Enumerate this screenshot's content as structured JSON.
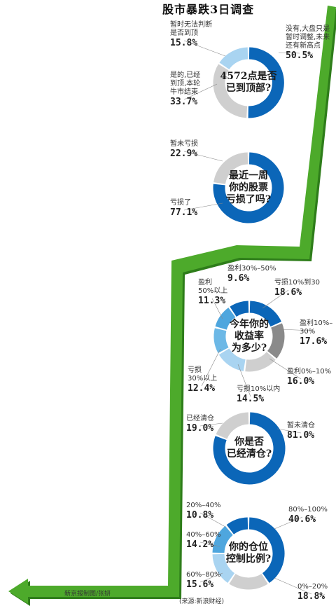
{
  "header": {
    "title": "股市暴跌3日调查"
  },
  "colors": {
    "blue": "#0b66b8",
    "light_blue": "#a9d4f1",
    "sky": "#4ea6de",
    "mid_blue": "#6cb8e6",
    "gray": "#cfcfcf",
    "dark_gray": "#8a8a8a",
    "arrow_green": "#4daa2b",
    "arrow_dark": "#2e7d1a"
  },
  "chart_data": [
    {
      "type": "pie",
      "title": "4572点是否已到顶部?",
      "title_lines": [
        "4572点是否",
        "已到顶部?"
      ],
      "slices": [
        {
          "label": "没有,大盘只是暂时调整,未来还有新高点",
          "label_lines": [
            "没有,大盘只是",
            "暂时调整,未来",
            "还有新高点"
          ],
          "value": 50.5,
          "value_text": "50.5%",
          "color": "#0b66b8"
        },
        {
          "label": "是的,已经到顶,本轮牛市结束",
          "label_lines": [
            "是的,已经",
            "到顶,本轮",
            "牛市结束"
          ],
          "value": 33.7,
          "value_text": "33.7%",
          "color": "#cfcfcf"
        },
        {
          "label": "暂时无法判断是否到顶",
          "label_lines": [
            "暂时无法判断",
            "是否到顶"
          ],
          "value": 15.8,
          "value_text": "15.8%",
          "color": "#a9d4f1"
        }
      ]
    },
    {
      "type": "pie",
      "title": "最近一周你的股票亏损了吗?",
      "title_lines": [
        "最近一周",
        "你的股票",
        "亏损了吗?"
      ],
      "slices": [
        {
          "label": "亏损了",
          "label_lines": [
            "亏损了"
          ],
          "value": 77.1,
          "value_text": "77.1%",
          "color": "#0b66b8"
        },
        {
          "label": "暂未亏损",
          "label_lines": [
            "暂未亏损"
          ],
          "value": 22.9,
          "value_text": "22.9%",
          "color": "#cfcfcf"
        }
      ]
    },
    {
      "type": "pie",
      "title": "今年你的收益率为多少?",
      "title_lines": [
        "今年你的",
        "收益率",
        "为多少?"
      ],
      "slices": [
        {
          "label": "亏损10%到30",
          "label_lines": [
            "亏损10%到30"
          ],
          "value": 18.6,
          "value_text": "18.6%",
          "color": "#0b66b8"
        },
        {
          "label": "盈利10%–30%",
          "label_lines": [
            "盈利10%–30%"
          ],
          "value": 17.6,
          "value_text": "17.6%",
          "color": "#8a8a8a"
        },
        {
          "label": "盈利0%–10%",
          "label_lines": [
            "盈利0%–10%"
          ],
          "value": 16.0,
          "value_text": "16.0%",
          "color": "#cfcfcf"
        },
        {
          "label": "亏损10%以内",
          "label_lines": [
            "亏损10%以内"
          ],
          "value": 14.5,
          "value_text": "14.5%",
          "color": "#a9d4f1"
        },
        {
          "label": "亏损30%以上",
          "label_lines": [
            "亏损",
            "30%以上"
          ],
          "value": 12.4,
          "value_text": "12.4%",
          "color": "#6cb8e6"
        },
        {
          "label": "盈利50%以上",
          "label_lines": [
            "盈利",
            "50%以上"
          ],
          "value": 11.3,
          "value_text": "11.3%",
          "color": "#4ea6de"
        },
        {
          "label": "盈利30%–50%",
          "label_lines": [
            "盈利30%–50%"
          ],
          "value": 9.6,
          "value_text": "9.6%",
          "color": "#0b66b8"
        }
      ]
    },
    {
      "type": "pie",
      "title": "你是否已经清仓?",
      "title_lines": [
        "你是否",
        "已经清仓?"
      ],
      "slices": [
        {
          "label": "暂未清仓",
          "label_lines": [
            "暂未清仓"
          ],
          "value": 81.0,
          "value_text": "81.0%",
          "color": "#0b66b8"
        },
        {
          "label": "已经清仓",
          "label_lines": [
            "已经清仓"
          ],
          "value": 19.0,
          "value_text": "19.0%",
          "color": "#cfcfcf"
        }
      ]
    },
    {
      "type": "pie",
      "title": "你的仓位控制比例?",
      "title_lines": [
        "你的仓位",
        "控制比例?"
      ],
      "slices": [
        {
          "label": "80%–100%",
          "label_lines": [
            "80%–100%"
          ],
          "value": 40.6,
          "value_text": "40.6%",
          "color": "#0b66b8"
        },
        {
          "label": "0%–20%",
          "label_lines": [
            "0%–20%"
          ],
          "value": 18.8,
          "value_text": "18.8%",
          "color": "#cfcfcf"
        },
        {
          "label": "60%–80%",
          "label_lines": [
            "60%–80%"
          ],
          "value": 15.6,
          "value_text": "15.6%",
          "color": "#a9d4f1"
        },
        {
          "label": "40%–60%",
          "label_lines": [
            "40%–60%"
          ],
          "value": 14.2,
          "value_text": "14.2%",
          "color": "#4ea6de"
        },
        {
          "label": "20%–40%",
          "label_lines": [
            "20%–40%"
          ],
          "value": 10.8,
          "value_text": "10.8%",
          "color": "#0b66b8"
        }
      ]
    }
  ],
  "credits": {
    "author": "新京报制图/张妍",
    "source": "(来源:新浪财经)"
  }
}
